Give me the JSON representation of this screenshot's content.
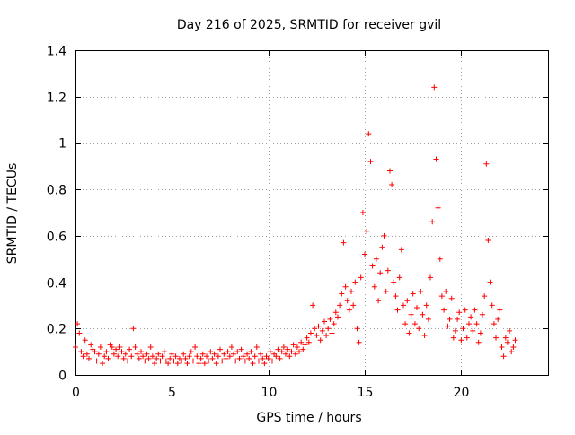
{
  "chart_data": {
    "type": "scatter",
    "title": "Day 216 of 2025, SRMTID for receiver gvil",
    "xlabel": "GPS time / hours",
    "ylabel": "SRMTID / TECUs",
    "xlim": [
      0,
      24.5
    ],
    "ylim": [
      0,
      1.4
    ],
    "xticks": [
      0,
      5,
      10,
      15,
      20
    ],
    "xtick_labels": [
      "0",
      "5",
      "10",
      "15",
      "20"
    ],
    "yticks": [
      0,
      0.2,
      0.4,
      0.6,
      0.8,
      1,
      1.2,
      1.4
    ],
    "ytick_labels": [
      "0",
      "0.2",
      "0.4",
      "0.6",
      "0.8",
      "1",
      "1.2",
      "1.4"
    ],
    "grid": true,
    "marker": "+",
    "series": [
      {
        "name": "SRMTID",
        "color": "#ff0000",
        "x": [
          0.0,
          0.1,
          0.2,
          0.3,
          0.4,
          0.5,
          0.6,
          0.7,
          0.8,
          0.9,
          1.0,
          1.1,
          1.2,
          1.3,
          1.4,
          1.5,
          1.6,
          1.7,
          1.8,
          1.9,
          2.0,
          2.1,
          2.2,
          2.3,
          2.4,
          2.5,
          2.6,
          2.7,
          2.8,
          2.9,
          3.0,
          3.1,
          3.2,
          3.3,
          3.4,
          3.5,
          3.6,
          3.7,
          3.8,
          3.9,
          4.0,
          4.1,
          4.2,
          4.3,
          4.4,
          4.5,
          4.6,
          4.7,
          4.8,
          4.9,
          5.0,
          5.1,
          5.2,
          5.3,
          5.4,
          5.5,
          5.6,
          5.7,
          5.8,
          5.9,
          6.0,
          6.1,
          6.2,
          6.3,
          6.4,
          6.5,
          6.6,
          6.7,
          6.8,
          6.9,
          7.0,
          7.1,
          7.2,
          7.3,
          7.4,
          7.5,
          7.6,
          7.7,
          7.8,
          7.9,
          8.0,
          8.1,
          8.2,
          8.3,
          8.4,
          8.5,
          8.6,
          8.7,
          8.8,
          8.9,
          9.0,
          9.1,
          9.2,
          9.3,
          9.4,
          9.5,
          9.6,
          9.7,
          9.8,
          9.9,
          10.0,
          10.1,
          10.2,
          10.3,
          10.4,
          10.5,
          10.6,
          10.7,
          10.8,
          10.9,
          11.0,
          11.1,
          11.2,
          11.3,
          11.4,
          11.5,
          11.6,
          11.7,
          11.8,
          11.9,
          12.0,
          12.1,
          12.2,
          12.3,
          12.4,
          12.5,
          12.6,
          12.7,
          12.8,
          12.9,
          13.0,
          13.1,
          13.2,
          13.3,
          13.4,
          13.5,
          13.6,
          13.7,
          13.8,
          13.9,
          14.0,
          14.1,
          14.2,
          14.3,
          14.4,
          14.5,
          14.6,
          14.7,
          14.8,
          14.9,
          15.0,
          15.1,
          15.2,
          15.3,
          15.4,
          15.5,
          15.6,
          15.7,
          15.8,
          15.9,
          16.0,
          16.1,
          16.2,
          16.3,
          16.4,
          16.5,
          16.6,
          16.7,
          16.8,
          16.9,
          17.0,
          17.1,
          17.2,
          17.3,
          17.4,
          17.5,
          17.6,
          17.7,
          17.8,
          17.9,
          18.0,
          18.1,
          18.2,
          18.3,
          18.4,
          18.5,
          18.6,
          18.7,
          18.8,
          18.9,
          19.0,
          19.1,
          19.2,
          19.3,
          19.4,
          19.5,
          19.6,
          19.7,
          19.8,
          19.9,
          20.0,
          20.1,
          20.2,
          20.3,
          20.4,
          20.5,
          20.6,
          20.7,
          20.8,
          20.9,
          21.0,
          21.1,
          21.2,
          21.3,
          21.4,
          21.5,
          21.6,
          21.7,
          21.8,
          21.9,
          22.0,
          22.1,
          22.2,
          22.3,
          22.4,
          22.5,
          22.6,
          22.7,
          22.8
        ],
        "y": [
          0.12,
          0.22,
          0.18,
          0.1,
          0.08,
          0.15,
          0.09,
          0.07,
          0.13,
          0.11,
          0.1,
          0.06,
          0.09,
          0.12,
          0.05,
          0.08,
          0.1,
          0.07,
          0.13,
          0.12,
          0.09,
          0.11,
          0.08,
          0.12,
          0.1,
          0.07,
          0.09,
          0.06,
          0.11,
          0.08,
          0.2,
          0.12,
          0.09,
          0.07,
          0.1,
          0.08,
          0.06,
          0.09,
          0.07,
          0.12,
          0.08,
          0.05,
          0.07,
          0.09,
          0.06,
          0.08,
          0.1,
          0.06,
          0.05,
          0.07,
          0.09,
          0.06,
          0.08,
          0.05,
          0.07,
          0.06,
          0.09,
          0.07,
          0.05,
          0.08,
          0.1,
          0.06,
          0.12,
          0.08,
          0.05,
          0.07,
          0.09,
          0.05,
          0.08,
          0.06,
          0.1,
          0.07,
          0.09,
          0.05,
          0.08,
          0.11,
          0.06,
          0.09,
          0.07,
          0.1,
          0.08,
          0.12,
          0.09,
          0.06,
          0.1,
          0.07,
          0.11,
          0.08,
          0.06,
          0.09,
          0.07,
          0.1,
          0.05,
          0.08,
          0.12,
          0.06,
          0.09,
          0.07,
          0.05,
          0.08,
          0.07,
          0.1,
          0.06,
          0.09,
          0.08,
          0.11,
          0.07,
          0.1,
          0.12,
          0.09,
          0.11,
          0.08,
          0.1,
          0.13,
          0.09,
          0.12,
          0.1,
          0.14,
          0.11,
          0.13,
          0.16,
          0.14,
          0.18,
          0.3,
          0.2,
          0.17,
          0.21,
          0.15,
          0.19,
          0.23,
          0.17,
          0.2,
          0.24,
          0.18,
          0.22,
          0.27,
          0.25,
          0.3,
          0.35,
          0.57,
          0.38,
          0.32,
          0.28,
          0.36,
          0.3,
          0.4,
          0.2,
          0.14,
          0.42,
          0.7,
          0.52,
          0.62,
          1.04,
          0.92,
          0.47,
          0.38,
          0.5,
          0.32,
          0.44,
          0.55,
          0.6,
          0.36,
          0.45,
          0.88,
          0.82,
          0.4,
          0.34,
          0.28,
          0.42,
          0.54,
          0.3,
          0.22,
          0.32,
          0.18,
          0.26,
          0.35,
          0.22,
          0.29,
          0.2,
          0.36,
          0.26,
          0.17,
          0.3,
          0.24,
          0.42,
          0.66,
          1.24,
          0.93,
          0.72,
          0.5,
          0.34,
          0.28,
          0.36,
          0.21,
          0.24,
          0.33,
          0.16,
          0.19,
          0.24,
          0.27,
          0.15,
          0.2,
          0.28,
          0.16,
          0.22,
          0.25,
          0.19,
          0.28,
          0.22,
          0.14,
          0.18,
          0.26,
          0.34,
          0.91,
          0.58,
          0.4,
          0.3,
          0.22,
          0.16,
          0.24,
          0.28,
          0.12,
          0.08,
          0.16,
          0.14,
          0.19,
          0.1,
          0.12,
          0.15
        ]
      }
    ]
  }
}
